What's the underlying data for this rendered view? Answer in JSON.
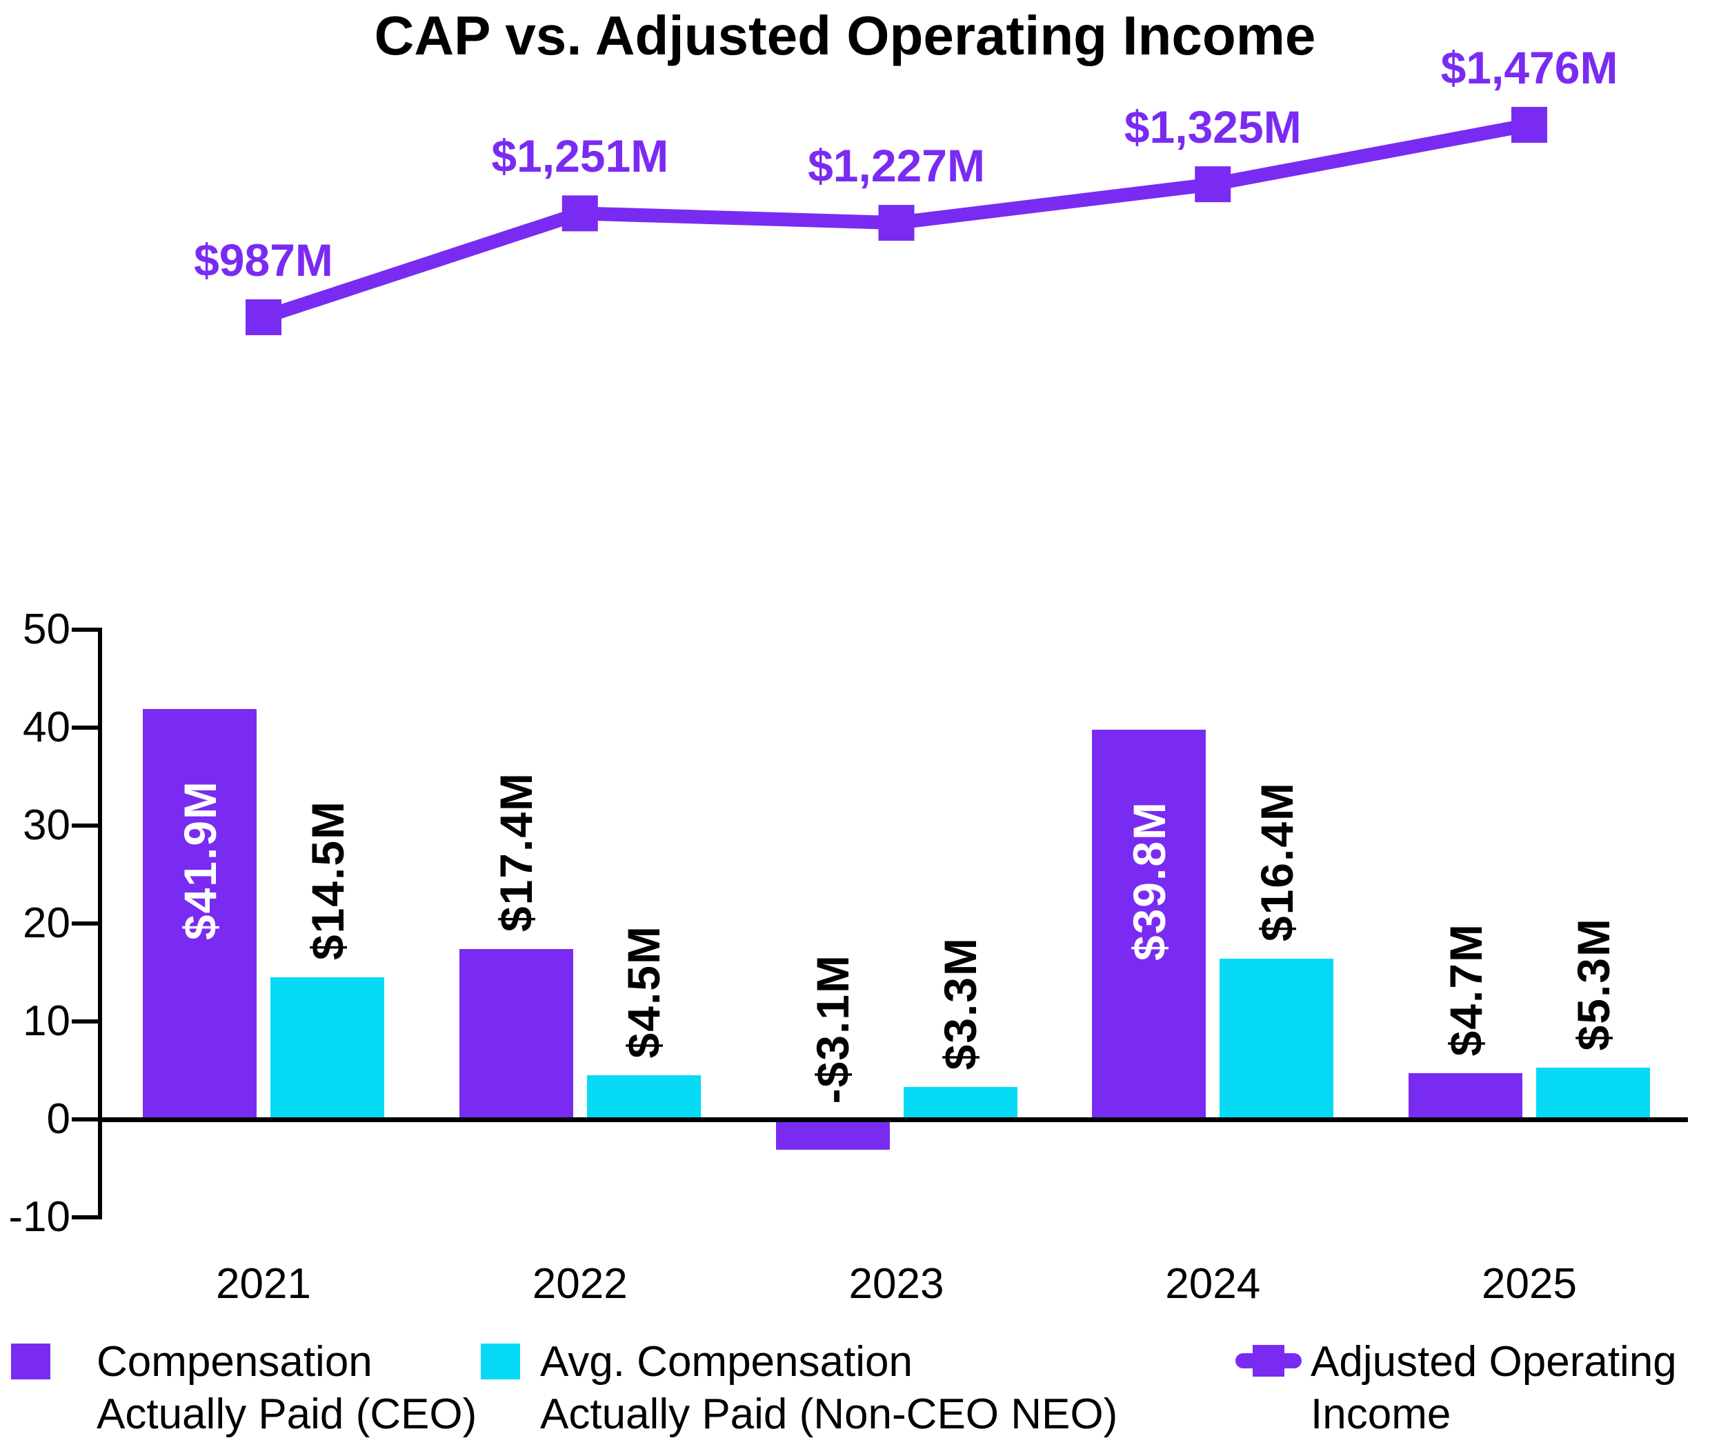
{
  "title": "CAP vs. Adjusted Operating Income",
  "colors": {
    "purple": "#7A2BF2",
    "cyan": "#06DAF5",
    "black": "#000000",
    "white": "#FFFFFF"
  },
  "chart_data": {
    "type": "combo-bar-line",
    "categories": [
      "2021",
      "2022",
      "2023",
      "2024",
      "2025"
    ],
    "bar_series": [
      {
        "name": "Compensation Actually Paid (CEO)",
        "color_key": "purple",
        "values": [
          41.9,
          17.4,
          -3.1,
          39.8,
          4.7
        ],
        "labels": [
          "$41.9M",
          "$17.4M",
          "-$3.1M",
          "$39.8M",
          "$4.7M"
        ],
        "label_styles": [
          "inside",
          "above",
          "above",
          "inside",
          "above"
        ]
      },
      {
        "name": "Avg. Compensation Actually Paid (Non-CEO NEO)",
        "color_key": "cyan",
        "values": [
          14.5,
          4.5,
          3.3,
          16.4,
          5.3
        ],
        "labels": [
          "$14.5M",
          "$4.5M",
          "$3.3M",
          "$16.4M",
          "$5.3M"
        ],
        "label_styles": [
          "above",
          "above",
          "above",
          "above",
          "above"
        ]
      }
    ],
    "line_series": {
      "name": "Adjusted Operating Income",
      "color_key": "purple",
      "values": [
        987,
        1251,
        1227,
        1325,
        1476
      ],
      "labels": [
        "$987M",
        "$1,251M",
        "$1,227M",
        "$1,325M",
        "$1,476M"
      ]
    },
    "y_axis": {
      "ticks": [
        50,
        40,
        30,
        20,
        10,
        0,
        -10
      ],
      "range": [
        -10,
        50
      ],
      "grid": "off"
    },
    "legend": [
      {
        "symbol": "square",
        "color_key": "purple",
        "lines": [
          "Compensation",
          "Actually Paid (CEO)"
        ]
      },
      {
        "symbol": "square",
        "color_key": "cyan",
        "lines": [
          "Avg. Compensation",
          "Actually Paid (Non-CEO NEO)"
        ]
      },
      {
        "symbol": "line-square",
        "color_key": "purple",
        "lines": [
          "Adjusted Operating",
          "Income"
        ]
      }
    ]
  }
}
